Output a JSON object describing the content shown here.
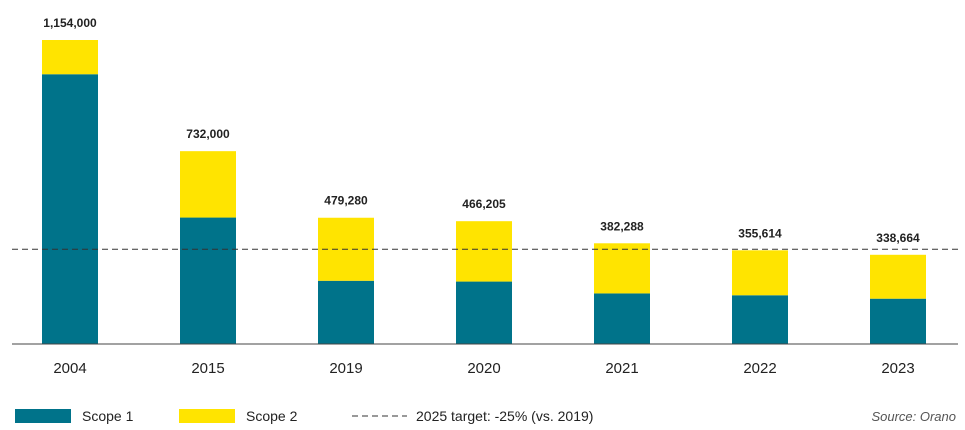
{
  "chart_data": {
    "type": "bar",
    "stacked": true,
    "categories": [
      "2004",
      "2015",
      "2019",
      "2020",
      "2021",
      "2022",
      "2023"
    ],
    "series": [
      {
        "name": "Scope 1",
        "color": "#00738a",
        "values": [
          1024000,
          480000,
          240000,
          237000,
          192000,
          185000,
          172000
        ]
      },
      {
        "name": "Scope 2",
        "color": "#ffe400",
        "values": [
          130000,
          252000,
          239280,
          229205,
          190288,
          170614,
          166664
        ]
      }
    ],
    "totals": [
      1154000,
      732000,
      479280,
      466205,
      382288,
      355614,
      338664
    ],
    "total_labels": [
      "1,154,000",
      "732,000",
      "479,280",
      "466,205",
      "382,288",
      "355,614",
      "338,664"
    ],
    "target": {
      "label": "2025 target: -25% (vs. 2019)",
      "value": 359460
    },
    "ylim": [
      0,
      1154000
    ],
    "grid": false,
    "legend_position": "bottom-left",
    "source": "Source: Orano"
  }
}
